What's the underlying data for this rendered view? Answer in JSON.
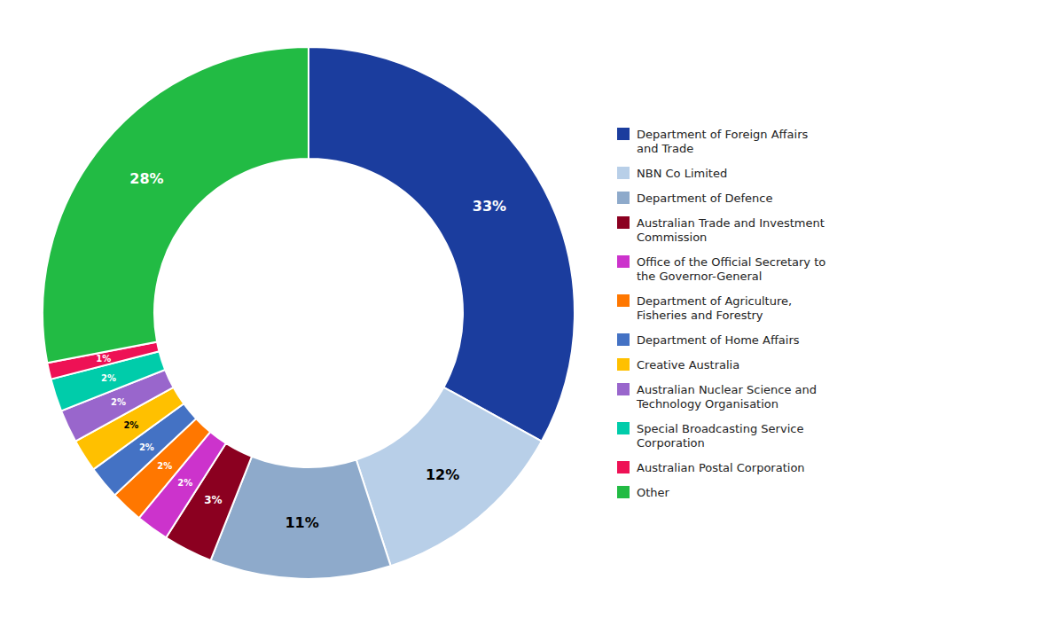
{
  "chart_data": {
    "type": "donut",
    "categories": [
      "Department of Foreign Affairs\nand Trade",
      "NBN Co Limited",
      "Department of Defence",
      "Australian Trade and Investment\nCommission",
      "Office of the Official Secretary to\nthe Governor-General",
      "Department of Agriculture,\nFisheries and Forestry",
      "Department of Home Affairs",
      "Creative Australia",
      "Australian Nuclear Science and\nTechnology Organisation",
      "Special Broadcasting Service\nCorporation",
      "Australian Postal Corporation",
      "Other"
    ],
    "values": [
      33,
      12,
      11,
      3,
      2,
      2,
      2,
      2,
      2,
      2,
      1,
      28
    ],
    "value_labels": [
      "33%",
      "12%",
      "11%",
      "3%",
      "2%",
      "2%",
      "2%",
      "2%",
      "2%",
      "2%",
      "1%",
      "28%"
    ],
    "colors": [
      "#1b3d9e",
      "#b8cfe8",
      "#8eaacb",
      "#8b0020",
      "#cc33cc",
      "#ff7700",
      "#4472c4",
      "#ffc000",
      "#9966cc",
      "#00ccaa",
      "#ee1155",
      "#22bb44"
    ],
    "data_labels": true,
    "legend": "right"
  }
}
